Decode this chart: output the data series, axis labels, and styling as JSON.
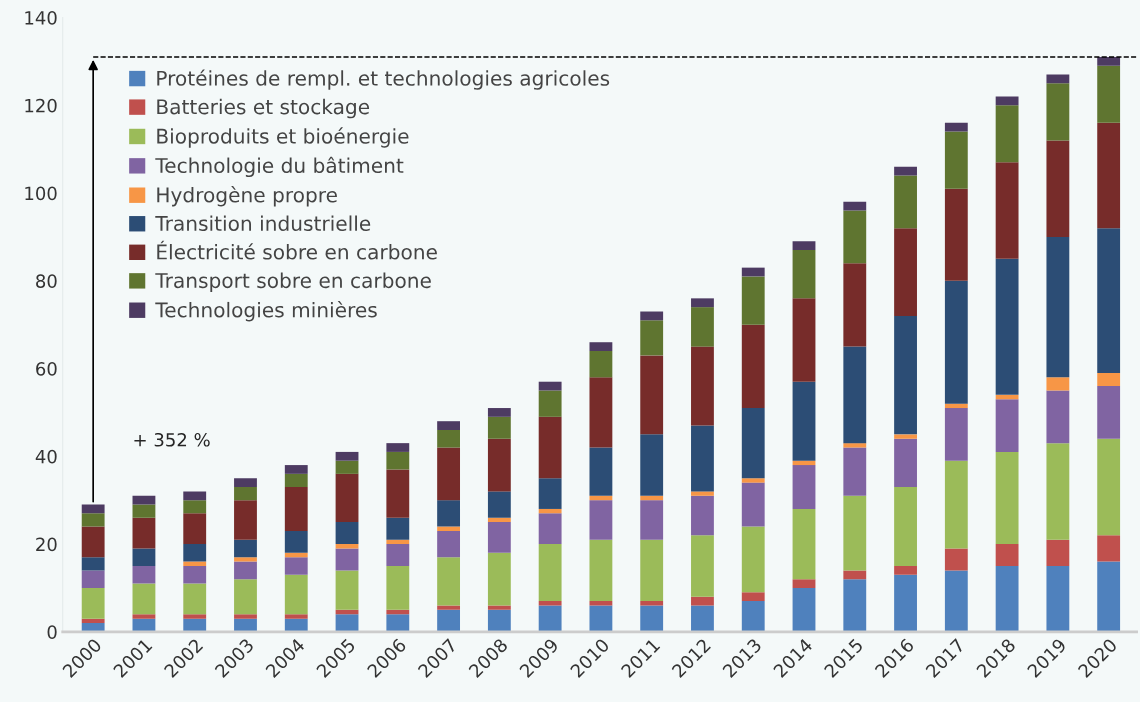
{
  "chart_data": {
    "type": "bar",
    "stacked": true,
    "categories": [
      "2000",
      "2001",
      "2002",
      "2003",
      "2004",
      "2005",
      "2006",
      "2007",
      "2008",
      "2009",
      "2010",
      "2011",
      "2012",
      "2013",
      "2014",
      "2015",
      "2016",
      "2017",
      "2018",
      "2019",
      "2020"
    ],
    "series": [
      {
        "name": "Protéines de rempl. et technologies agricoles",
        "color": "#4f81bd",
        "values": [
          2,
          3,
          3,
          3,
          3,
          4,
          4,
          5,
          5,
          6,
          6,
          6,
          6,
          7,
          10,
          12,
          13,
          14,
          15,
          15,
          16
        ]
      },
      {
        "name": "Batteries et stockage",
        "color": "#c0504d",
        "values": [
          1,
          1,
          1,
          1,
          1,
          1,
          1,
          1,
          1,
          1,
          1,
          1,
          2,
          2,
          2,
          2,
          2,
          5,
          5,
          6,
          6
        ]
      },
      {
        "name": "Bioproduits et bioénergie",
        "color": "#9bbb59",
        "values": [
          7,
          7,
          7,
          8,
          9,
          9,
          10,
          11,
          12,
          13,
          14,
          14,
          14,
          15,
          16,
          17,
          18,
          20,
          21,
          22,
          22
        ]
      },
      {
        "name": "Technologie du bâtiment",
        "color": "#8064a2",
        "values": [
          4,
          4,
          4,
          4,
          4,
          5,
          5,
          6,
          7,
          7,
          9,
          9,
          9,
          10,
          10,
          11,
          11,
          12,
          12,
          12,
          12
        ]
      },
      {
        "name": "Hydrogène propre",
        "color": "#f79646",
        "values": [
          0,
          0,
          1,
          1,
          1,
          1,
          1,
          1,
          1,
          1,
          1,
          1,
          1,
          1,
          1,
          1,
          1,
          1,
          1,
          3,
          3
        ]
      },
      {
        "name": "Transition industrielle",
        "color": "#2c4d75",
        "values": [
          3,
          4,
          4,
          4,
          5,
          5,
          5,
          6,
          6,
          7,
          11,
          14,
          15,
          16,
          18,
          22,
          27,
          28,
          31,
          32,
          33
        ]
      },
      {
        "name": "Électricité sobre en carbone",
        "color": "#772c2a",
        "values": [
          7,
          7,
          7,
          9,
          10,
          11,
          11,
          12,
          12,
          14,
          16,
          18,
          18,
          19,
          19,
          19,
          20,
          21,
          22,
          22,
          24
        ]
      },
      {
        "name": "Transport sobre en carbone",
        "color": "#5f7530",
        "values": [
          3,
          3,
          3,
          3,
          3,
          3,
          4,
          4,
          5,
          6,
          6,
          8,
          9,
          11,
          11,
          12,
          12,
          13,
          13,
          13,
          13
        ]
      },
      {
        "name": "Technologies minières",
        "color": "#4d3b62",
        "values": [
          2,
          2,
          2,
          2,
          2,
          2,
          2,
          2,
          2,
          2,
          2,
          2,
          2,
          2,
          2,
          2,
          2,
          2,
          2,
          2,
          2
        ]
      }
    ],
    "ylim": [
      0,
      140
    ],
    "yticks": [
      0,
      20,
      40,
      60,
      80,
      100,
      120,
      140
    ],
    "ref_lines": [
      {
        "axis": "y",
        "value": 131,
        "line_style": "dashed",
        "color": "#000000"
      }
    ],
    "annotations": [
      "+ 352 %"
    ],
    "legend": "top left",
    "grid": false
  }
}
